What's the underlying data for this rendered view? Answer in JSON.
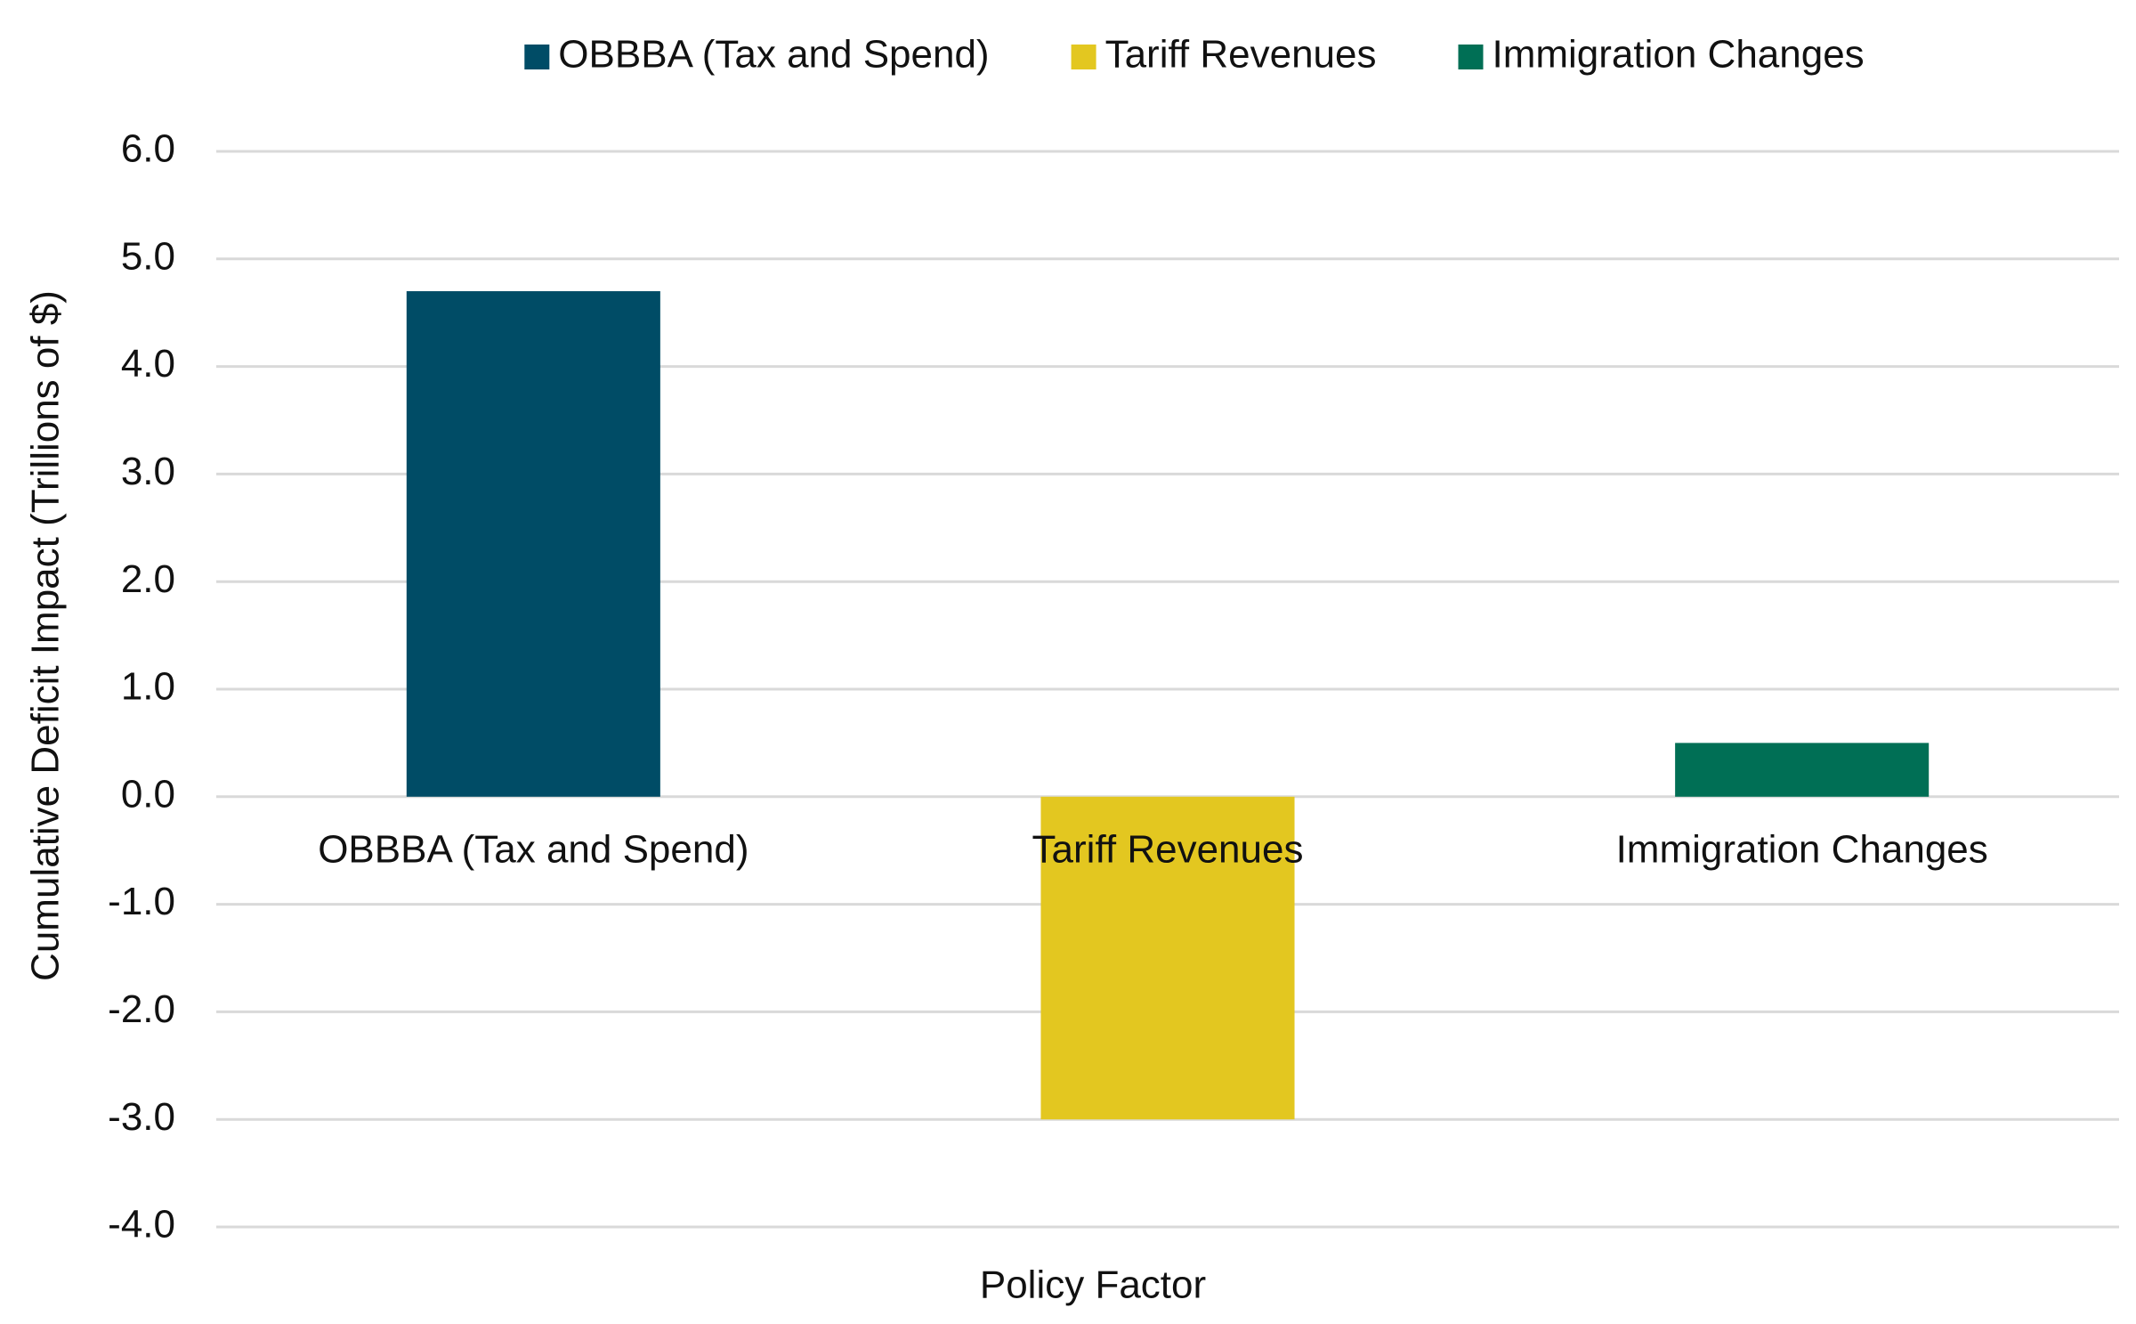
{
  "chart_data": {
    "type": "bar",
    "x_label": "Policy Factor",
    "y_label": "Cumulative Deficit Impact (Trillions of $)",
    "categories": [
      "OBBBA (Tax and Spend)",
      "Tariff Revenues",
      "Immigration Changes"
    ],
    "series": [
      {
        "name": "OBBBA (Tax and Spend)",
        "color": "#004c66",
        "values": [
          4.7,
          null,
          null
        ]
      },
      {
        "name": "Tariff Revenues",
        "color": "#e3c720",
        "values": [
          null,
          -3.0,
          null
        ]
      },
      {
        "name": "Immigration Changes",
        "color": "#006f55",
        "values": [
          null,
          null,
          0.5
        ]
      }
    ],
    "ylim": [
      -4,
      6
    ],
    "yticks": [
      {
        "value": -4,
        "label": "-4.0"
      },
      {
        "value": -3,
        "label": "-3.0"
      },
      {
        "value": -2,
        "label": "-2.0"
      },
      {
        "value": -1,
        "label": "-1.0"
      },
      {
        "value": 0,
        "label": "0.0"
      },
      {
        "value": 1,
        "label": "1.0"
      },
      {
        "value": 2,
        "label": "2.0"
      },
      {
        "value": 3,
        "label": "3.0"
      },
      {
        "value": 4,
        "label": "4.0"
      },
      {
        "value": 5,
        "label": "5.0"
      },
      {
        "value": 6,
        "label": "6.0"
      }
    ],
    "grid": true,
    "legend": "top"
  }
}
